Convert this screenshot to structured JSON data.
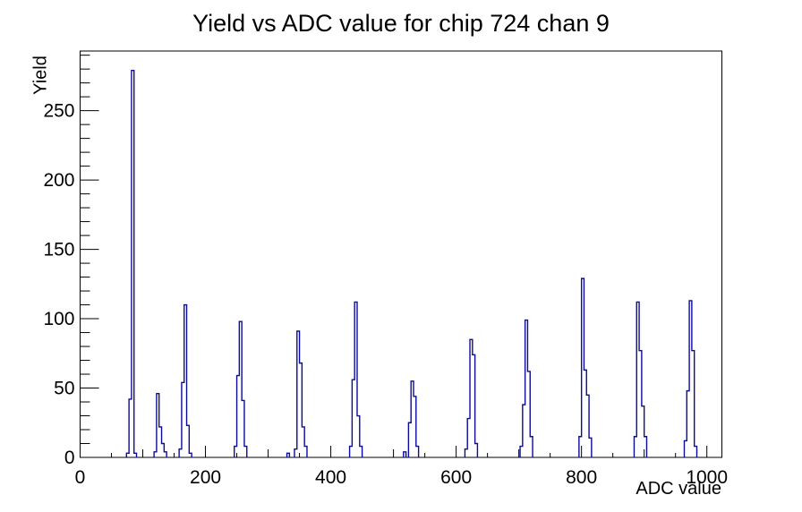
{
  "chart_data": {
    "type": "bar",
    "title": "Yield vs ADC value for chip 724 chan 9",
    "xlabel": "ADC value",
    "ylabel": "Yield",
    "xlim": [
      0,
      1024
    ],
    "ylim": [
      0,
      293
    ],
    "x_major_ticks": [
      0,
      200,
      400,
      600,
      800,
      1000
    ],
    "x_tick_labels": [
      "0",
      "200",
      "400",
      "600",
      "800",
      "1000"
    ],
    "x_medium_tick_step": 100,
    "x_minor_tick_step": 50,
    "y_major_ticks": [
      0,
      50,
      100,
      150,
      200,
      250
    ],
    "y_tick_labels": [
      "0",
      "50",
      "100",
      "150",
      "200",
      "250"
    ],
    "y_minor_tick_step": 10,
    "grid": false,
    "legend": "none",
    "bin_width": 4,
    "clusters": [
      {
        "start": 74,
        "values": [
          3,
          42,
          279,
          3
        ]
      },
      {
        "start": 118,
        "values": [
          4,
          46,
          22,
          10,
          4
        ]
      },
      {
        "start": 158,
        "values": [
          6,
          54,
          110,
          23,
          3
        ]
      },
      {
        "start": 246,
        "values": [
          8,
          59,
          98,
          41,
          8
        ]
      },
      {
        "start": 330,
        "values": [
          3
        ]
      },
      {
        "start": 342,
        "values": [
          6,
          91,
          68,
          22,
          8
        ]
      },
      {
        "start": 430,
        "values": [
          8,
          56,
          112,
          30,
          8
        ]
      },
      {
        "start": 516,
        "values": [
          4
        ]
      },
      {
        "start": 524,
        "values": [
          25,
          55,
          44,
          8
        ]
      },
      {
        "start": 614,
        "values": [
          6,
          28,
          85,
          74,
          10
        ]
      },
      {
        "start": 702,
        "values": [
          8,
          38,
          99,
          62,
          15
        ]
      },
      {
        "start": 796,
        "values": [
          15,
          129,
          63,
          45,
          14
        ]
      },
      {
        "start": 884,
        "values": [
          15,
          112,
          77,
          37,
          15
        ]
      },
      {
        "start": 964,
        "values": [
          12,
          48,
          113,
          77,
          8
        ]
      }
    ],
    "peak_summary": [
      {
        "adc": 84,
        "yield": 279
      },
      {
        "adc": 124,
        "yield": 46
      },
      {
        "adc": 168,
        "yield": 110
      },
      {
        "adc": 256,
        "yield": 98
      },
      {
        "adc": 348,
        "yield": 91
      },
      {
        "adc": 440,
        "yield": 112
      },
      {
        "adc": 530,
        "yield": 55
      },
      {
        "adc": 624,
        "yield": 85
      },
      {
        "adc": 712,
        "yield": 99
      },
      {
        "adc": 802,
        "yield": 129
      },
      {
        "adc": 890,
        "yield": 112
      },
      {
        "adc": 974,
        "yield": 113
      }
    ]
  },
  "colors": {
    "histogram_line": "#0b0b9b",
    "axis": "#000000",
    "background": "#ffffff",
    "text": "#000000"
  }
}
